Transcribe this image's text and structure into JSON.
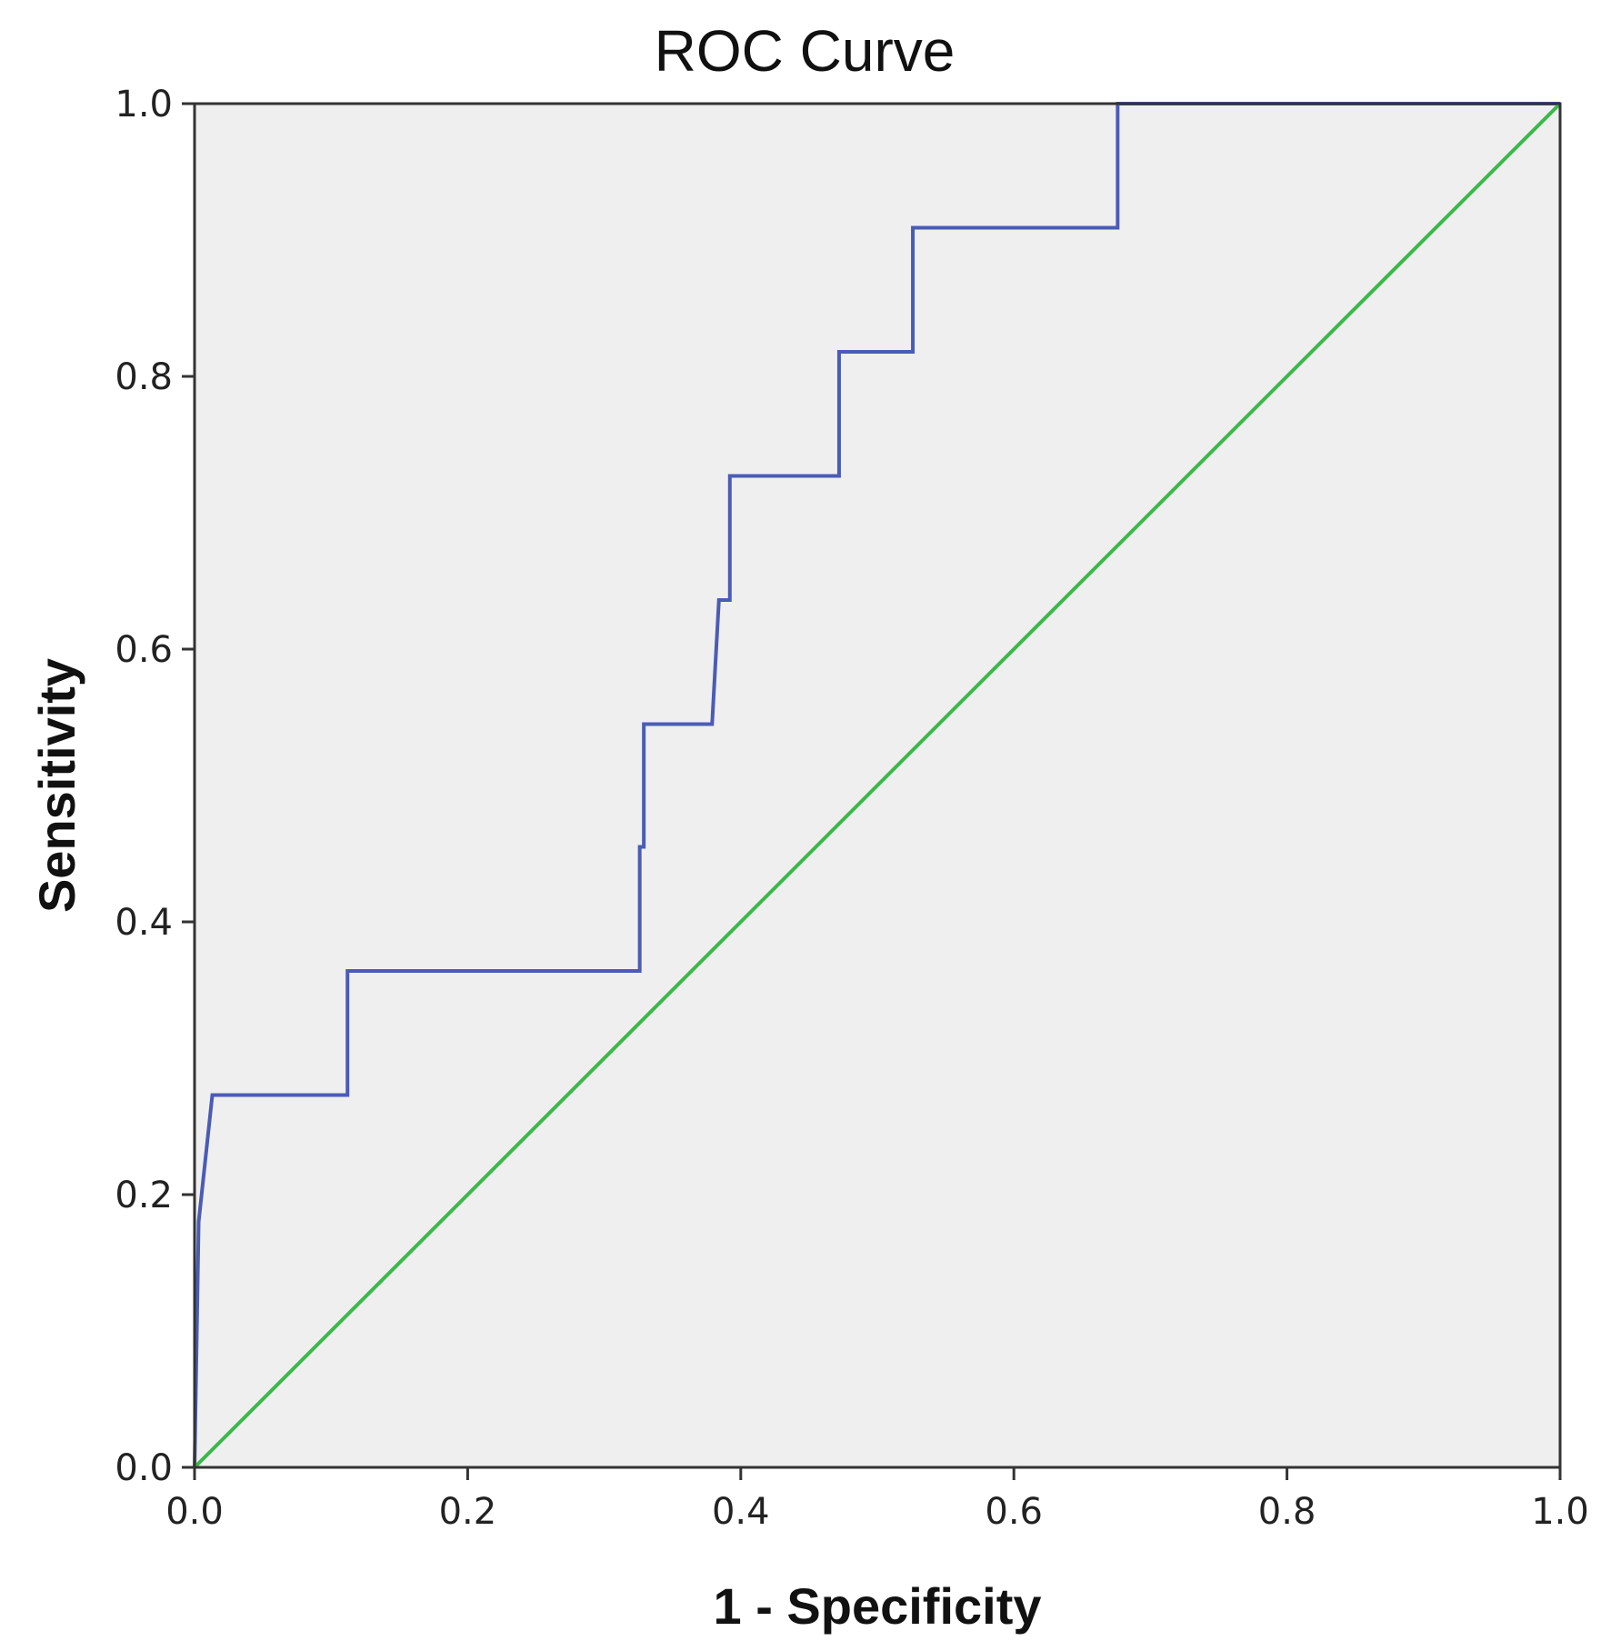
{
  "chart_data": {
    "type": "line",
    "title": "ROC Curve",
    "xlabel": "1 - Specificity",
    "ylabel": "Sensitivity",
    "xlim": [
      0,
      1
    ],
    "ylim": [
      0,
      1
    ],
    "x_ticks": [
      "0.0",
      "0.2",
      "0.4",
      "0.6",
      "0.8",
      "1.0"
    ],
    "y_ticks": [
      "0.0",
      "0.2",
      "0.4",
      "0.6",
      "0.8",
      "1.0"
    ],
    "grid": false,
    "series": [
      {
        "color": "#4a5cb4",
        "points": [
          [
            0.0,
            0.0
          ],
          [
            0.003,
            0.18
          ],
          [
            0.013,
            0.273
          ],
          [
            0.112,
            0.273
          ],
          [
            0.112,
            0.364
          ],
          [
            0.326,
            0.364
          ],
          [
            0.326,
            0.455
          ],
          [
            0.329,
            0.455
          ],
          [
            0.329,
            0.545
          ],
          [
            0.379,
            0.545
          ],
          [
            0.384,
            0.636
          ],
          [
            0.392,
            0.636
          ],
          [
            0.392,
            0.727
          ],
          [
            0.472,
            0.727
          ],
          [
            0.472,
            0.818
          ],
          [
            0.526,
            0.818
          ],
          [
            0.526,
            0.909
          ],
          [
            0.676,
            0.909
          ],
          [
            0.676,
            1.0
          ],
          [
            1.0,
            1.0
          ]
        ]
      },
      {
        "color": "#3cb84a",
        "points": [
          [
            0.0,
            0.0
          ],
          [
            1.0,
            1.0
          ]
        ]
      }
    ],
    "plot_background": "#efefef"
  }
}
